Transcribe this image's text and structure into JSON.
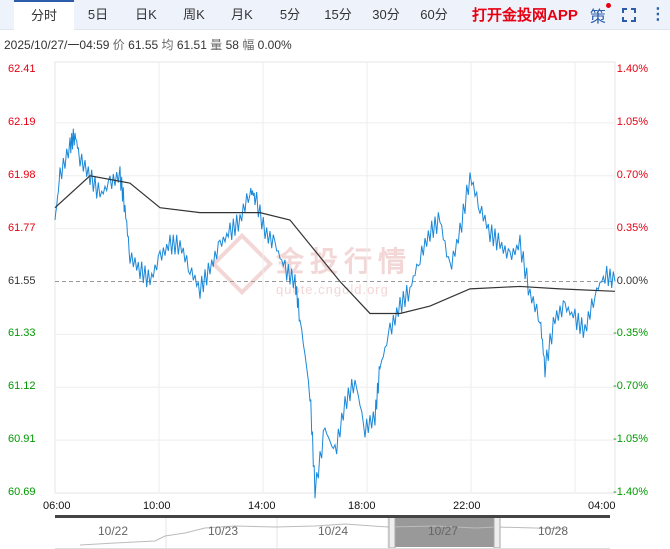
{
  "tabs": [
    "分时",
    "5日",
    "日K",
    "周K",
    "月K",
    "5分",
    "15分",
    "30分",
    "60分"
  ],
  "app_link": "打开金投网APP",
  "strategy_label": "策",
  "info": {
    "datetime": "2025/10/27/一04:59",
    "price_label": "价",
    "price": "61.55",
    "avg_label": "均",
    "avg": "61.51",
    "vol_label": "量",
    "vol": "58",
    "chg_label": "幅",
    "chg": "0.00%"
  },
  "watermark": "金投行情 quote.cngold.org",
  "colors": {
    "up": "#e60012",
    "down": "#009900",
    "line": "#1a88d8",
    "avg": "#333333"
  },
  "chart_data": {
    "type": "line",
    "y_left_ticks": [
      "62.41",
      "62.19",
      "61.98",
      "61.77",
      "61.55",
      "61.33",
      "61.12",
      "60.91",
      "60.69"
    ],
    "y_right_ticks": [
      "1.40%",
      "1.05%",
      "0.70%",
      "0.35%",
      "0.00%",
      "-0.35%",
      "-0.70%",
      "-1.05%",
      "-1.40%"
    ],
    "x_ticks": [
      "06:00",
      "10:00",
      "14:00",
      "18:00",
      "22:00",
      "04:00"
    ],
    "ylim": [
      60.69,
      62.41
    ],
    "base": 61.55,
    "series": [
      {
        "name": "price",
        "t": [
          0,
          0.2,
          0.6,
          0.8,
          1,
          1.4,
          1.8,
          2.2,
          2.6,
          2.8,
          3,
          3.4,
          3.8,
          4.2,
          4.6,
          5,
          5.4,
          5.8,
          6.2,
          6.6,
          7,
          7.4,
          7.8,
          8,
          8.4,
          8.8,
          9.2,
          9.6,
          9.8,
          10.2,
          10.4,
          10.8,
          11.2,
          11.6,
          12,
          12.4,
          12.8,
          13,
          13.4,
          13.8,
          14.2,
          14.6,
          15,
          15.4,
          15.8,
          16.2,
          16.6,
          17,
          17.4,
          17.8,
          18.2,
          18.6,
          19,
          19.4,
          19.6,
          20,
          20.4,
          20.8,
          21.2,
          21.6,
          22,
          22.4
        ],
        "price": [
          61.8,
          61.98,
          62.1,
          62.15,
          62.05,
          61.98,
          61.9,
          61.95,
          61.98,
          61.85,
          61.65,
          61.6,
          61.55,
          61.65,
          61.7,
          61.7,
          61.6,
          61.52,
          61.6,
          61.7,
          61.75,
          61.8,
          61.92,
          61.9,
          61.75,
          61.7,
          61.6,
          61.55,
          61.4,
          61.1,
          60.7,
          60.95,
          60.85,
          61.05,
          61.15,
          60.95,
          61.0,
          61.2,
          61.35,
          61.45,
          61.52,
          61.65,
          61.75,
          61.8,
          61.6,
          61.75,
          61.98,
          61.85,
          61.75,
          61.7,
          61.65,
          61.7,
          61.5,
          61.4,
          61.2,
          61.4,
          61.45,
          61.4,
          61.35,
          61.5,
          61.58,
          61.55
        ]
      },
      {
        "name": "average",
        "t": [
          0,
          1.4,
          3,
          4.2,
          5.8,
          8.2,
          9.4,
          10.2,
          11.4,
          12.6,
          13.8,
          15,
          16.6,
          18.6,
          20.2,
          22.4
        ],
        "price": [
          61.85,
          61.98,
          61.95,
          61.85,
          61.83,
          61.83,
          61.8,
          61.7,
          61.55,
          61.42,
          61.42,
          61.45,
          61.52,
          61.53,
          61.52,
          61.51
        ]
      }
    ]
  },
  "navigator": {
    "dates": [
      "10/22",
      "10/23",
      "10/24",
      "10/27",
      "10/28"
    ]
  }
}
